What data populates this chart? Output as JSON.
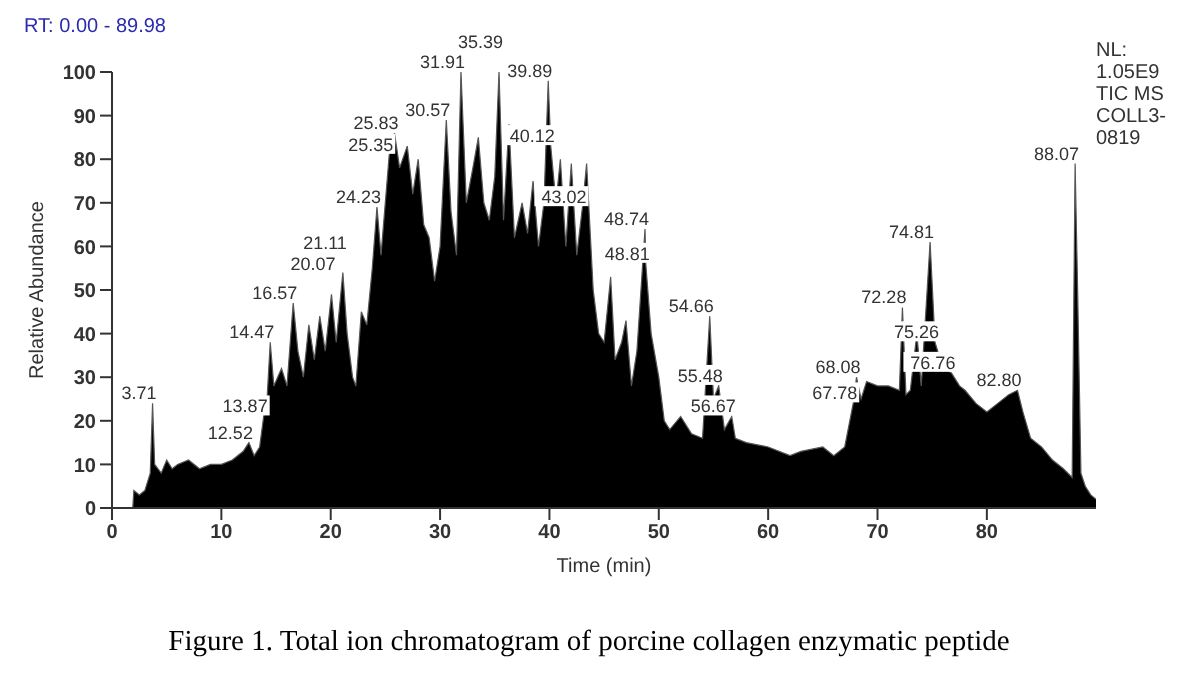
{
  "chart_data": {
    "type": "area",
    "xlabel": "Time (min)",
    "ylabel": "Relative Abundance",
    "xlim": [
      0,
      89.98
    ],
    "xticks": [
      0,
      10,
      20,
      30,
      40,
      50,
      60,
      70,
      80
    ],
    "ylim": [
      0,
      100
    ],
    "yticks": [
      0,
      10,
      20,
      30,
      40,
      50,
      60,
      70,
      80,
      90,
      100
    ],
    "series": [
      {
        "color": "#000000",
        "x": [
          0,
          1.9,
          2,
          2.5,
          3,
          3.5,
          3.71,
          3.9,
          4.5,
          5,
          5.5,
          6,
          7,
          8,
          9,
          10,
          11,
          12,
          12.52,
          13,
          13.5,
          13.87,
          14.2,
          14.47,
          14.8,
          15.5,
          16,
          16.57,
          17,
          17.5,
          18,
          18.5,
          19,
          19.5,
          20.07,
          20.5,
          21.11,
          21.5,
          22,
          22.3,
          22.8,
          23.3,
          23.8,
          24.23,
          24.6,
          25.35,
          25.83,
          26.3,
          27,
          27.5,
          28,
          28.5,
          29,
          29.5,
          30,
          30.57,
          31,
          31.5,
          31.91,
          32.4,
          33,
          33.5,
          34,
          34.5,
          35,
          35.39,
          35.8,
          36.3,
          36.8,
          37.5,
          38,
          38.5,
          39,
          39.5,
          39.89,
          40.12,
          40.6,
          41,
          41.5,
          42,
          42.5,
          43.02,
          43.4,
          44,
          44.5,
          45,
          45.6,
          46,
          46.6,
          47,
          47.5,
          48,
          48.74,
          48.81,
          49.3,
          50,
          50.5,
          51,
          52,
          53,
          54,
          54.66,
          55,
          55.48,
          56,
          56.67,
          57,
          58,
          60,
          62,
          63,
          65,
          66,
          67,
          67.78,
          68.08,
          68.5,
          69,
          70,
          71,
          72,
          72.28,
          72.6,
          73,
          73.6,
          74,
          74.81,
          75.26,
          76,
          76.76,
          77.5,
          78,
          79,
          80,
          81,
          82,
          82.8,
          83.3,
          84,
          85,
          86,
          87,
          87.8,
          88.07,
          88.3,
          88.6,
          89,
          89.5,
          89.98
        ],
        "values": [
          0,
          0,
          4,
          3,
          4,
          8,
          24,
          10,
          8,
          11,
          9,
          10,
          11,
          9,
          10,
          10,
          11,
          13,
          15,
          12,
          14,
          21,
          26,
          38,
          28,
          32,
          28,
          47,
          36,
          30,
          42,
          34,
          44,
          36,
          49,
          38,
          54,
          40,
          30,
          28,
          45,
          42,
          55,
          69,
          58,
          81,
          86,
          78,
          83,
          72,
          80,
          65,
          62,
          52,
          60,
          89,
          68,
          58,
          100,
          70,
          78,
          85,
          70,
          66,
          76,
          100,
          66,
          88,
          62,
          70,
          63,
          75,
          60,
          70,
          98,
          83,
          70,
          80,
          60,
          79,
          58,
          69,
          79,
          50,
          40,
          38,
          53,
          34,
          38,
          43,
          28,
          36,
          64,
          56,
          40,
          30,
          20,
          18,
          21,
          17,
          16,
          44,
          25,
          28,
          18,
          21,
          16,
          15,
          14,
          12,
          13,
          14,
          12,
          14,
          24,
          30,
          25,
          29,
          28,
          28,
          27,
          46,
          26,
          27,
          40,
          28,
          61,
          38,
          32,
          31,
          28,
          27,
          24,
          22,
          24,
          26,
          27,
          22,
          16,
          14,
          11,
          9,
          7,
          79,
          50,
          8,
          5,
          3,
          2
        ]
      }
    ],
    "annotations": [
      "RT: 0.00 - 89.98",
      "NL: 1.05E9 TIC MS COLL3-0819",
      "Figure 1. Total ion chromatogram of porcine collagen enzymatic peptide",
      {
        "text": "3.71",
        "x": 3.71,
        "y": 24
      },
      {
        "text": "12.52",
        "x": 12.52,
        "y": 15
      },
      {
        "text": "13.87",
        "x": 13.87,
        "y": 21
      },
      {
        "text": "14.47",
        "x": 14.47,
        "y": 38
      },
      {
        "text": "16.57",
        "x": 16.57,
        "y": 47
      },
      {
        "text": "20.07",
        "x": 20.07,
        "y": 49
      },
      {
        "text": "21.11",
        "x": 21.11,
        "y": 54
      },
      {
        "text": "24.23",
        "x": 24.23,
        "y": 69
      },
      {
        "text": "25.35",
        "x": 25.35,
        "y": 81
      },
      {
        "text": "25.83",
        "x": 25.83,
        "y": 86
      },
      {
        "text": "30.57",
        "x": 30.57,
        "y": 89
      },
      {
        "text": "31.91",
        "x": 31.91,
        "y": 100
      },
      {
        "text": "35.39",
        "x": 35.39,
        "y": 100
      },
      {
        "text": "39.89",
        "x": 39.89,
        "y": 98
      },
      {
        "text": "40.12",
        "x": 40.12,
        "y": 83
      },
      {
        "text": "43.02",
        "x": 43.02,
        "y": 69
      },
      {
        "text": "48.74",
        "x": 48.74,
        "y": 64
      },
      {
        "text": "48.81",
        "x": 48.81,
        "y": 56
      },
      {
        "text": "54.66",
        "x": 54.66,
        "y": 44
      },
      {
        "text": "55.48",
        "x": 55.48,
        "y": 28
      },
      {
        "text": "56.67",
        "x": 56.67,
        "y": 21
      },
      {
        "text": "67.78",
        "x": 67.78,
        "y": 24
      },
      {
        "text": "68.08",
        "x": 68.08,
        "y": 30
      },
      {
        "text": "72.28",
        "x": 72.28,
        "y": 46
      },
      {
        "text": "74.81",
        "x": 74.81,
        "y": 61
      },
      {
        "text": "75.26",
        "x": 75.26,
        "y": 38
      },
      {
        "text": "76.76",
        "x": 76.76,
        "y": 31
      },
      {
        "text": "82.80",
        "x": 82.8,
        "y": 27
      },
      {
        "text": "88.07",
        "x": 88.07,
        "y": 79
      }
    ]
  }
}
